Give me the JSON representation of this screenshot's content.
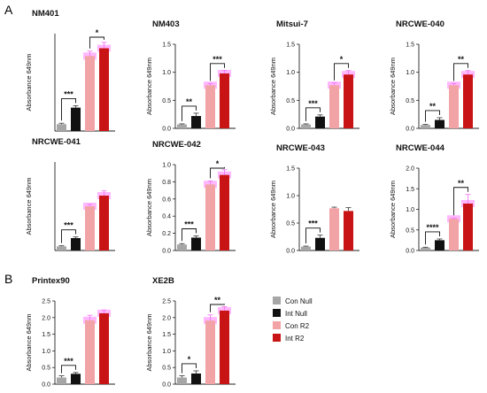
{
  "figure": {
    "panel_labels": [
      "A",
      "B"
    ],
    "legend": {
      "entries": [
        {
          "name": "Con Null",
          "color": "#a6a6a6"
        },
        {
          "name": "Int Null",
          "color": "#111111"
        },
        {
          "name": "Con R2",
          "color": "#f2a3a6"
        },
        {
          "name": "Int R2",
          "color": "#c81414"
        }
      ]
    },
    "colors": {
      "con_null": "#a6a6a6",
      "int_null": "#111111",
      "con_r2": "#f2a3a6",
      "int_r2": "#c81414",
      "highlight": "#ff33ff",
      "error_bar_light": "#f06cf0"
    }
  },
  "chart_data": [
    {
      "type": "bar",
      "title": "NM401",
      "ylabel": "Absorbance 649nm",
      "categories": [
        "Con Null",
        "Int Null",
        "Con R2",
        "Int R2"
      ],
      "values": [
        0.07,
        0.24,
        0.77,
        0.85
      ],
      "errors": [
        0.01,
        0.02,
        0.05,
        0.06
      ],
      "ylim": [
        0,
        1.0
      ],
      "yticks": [],
      "highlighted": true,
      "significance": [
        {
          "pair": [
            0,
            1
          ],
          "label": "***"
        },
        {
          "pair": [
            2,
            3
          ],
          "label": "*"
        }
      ]
    },
    {
      "type": "bar",
      "title": "NM403",
      "ylabel": "Absorbance 649nm",
      "categories": [
        "Con Null",
        "Int Null",
        "Con R2",
        "Int R2"
      ],
      "values": [
        0.07,
        0.22,
        0.77,
        0.98
      ],
      "errors": [
        0.01,
        0.05,
        0.03,
        0.05
      ],
      "ylim": [
        0,
        1.5
      ],
      "yticks": [
        "0.0",
        "0.5",
        "1.0",
        "1.5"
      ],
      "highlighted": true,
      "significance": [
        {
          "pair": [
            0,
            1
          ],
          "label": "**"
        },
        {
          "pair": [
            2,
            3
          ],
          "label": "***"
        }
      ]
    },
    {
      "type": "bar",
      "title": "Mitsui-7",
      "ylabel": "Absorbance 649nm",
      "categories": [
        "Con Null",
        "Int Null",
        "Con R2",
        "Int R2"
      ],
      "values": [
        0.07,
        0.21,
        0.77,
        0.96
      ],
      "errors": [
        0.01,
        0.03,
        0.04,
        0.07
      ],
      "ylim": [
        0,
        1.5
      ],
      "yticks": [
        "0.0",
        "0.5",
        "1.0",
        "1.5"
      ],
      "highlighted": true,
      "significance": [
        {
          "pair": [
            0,
            1
          ],
          "label": "***"
        },
        {
          "pair": [
            2,
            3
          ],
          "label": "*"
        }
      ]
    },
    {
      "type": "bar",
      "title": "NRCWE-040",
      "ylabel": "Absorbance 649nm",
      "categories": [
        "Con Null",
        "Int Null",
        "Con R2",
        "Int R2"
      ],
      "values": [
        0.06,
        0.15,
        0.77,
        0.96
      ],
      "errors": [
        0.01,
        0.04,
        0.03,
        0.07
      ],
      "ylim": [
        0,
        1.5
      ],
      "yticks": [
        "0.0",
        "0.5",
        "1.0",
        "1.5"
      ],
      "highlighted": true,
      "significance": [
        {
          "pair": [
            0,
            1
          ],
          "label": "**"
        },
        {
          "pair": [
            2,
            3
          ],
          "label": "**"
        }
      ]
    },
    {
      "type": "bar",
      "title": "NRCWE-041",
      "ylabel": "Absorbance 649nm",
      "categories": [
        "Con Null",
        "Int Null",
        "Con R2",
        "Int R2"
      ],
      "values": [
        0.07,
        0.21,
        0.75,
        0.93
      ],
      "errors": [
        0.01,
        0.02,
        0.03,
        0.08
      ],
      "ylim": [
        0,
        1.5
      ],
      "yticks": [],
      "highlighted": true,
      "significance": [
        {
          "pair": [
            0,
            1
          ],
          "label": "***"
        }
      ]
    },
    {
      "type": "bar",
      "title": "NRCWE-042",
      "ylabel": "Absorbance 649nm",
      "categories": [
        "Con Null",
        "Int Null",
        "Con R2",
        "Int R2"
      ],
      "values": [
        0.07,
        0.15,
        0.77,
        0.88
      ],
      "errors": [
        0.01,
        0.02,
        0.04,
        0.06
      ],
      "ylim": [
        0,
        1.0
      ],
      "yticks": [
        "0.0",
        "0.2",
        "0.4",
        "0.6",
        "0.8",
        "1.0"
      ],
      "highlighted": true,
      "significance": [
        {
          "pair": [
            0,
            1
          ],
          "label": "***"
        },
        {
          "pair": [
            2,
            3
          ],
          "label": "*"
        }
      ]
    },
    {
      "type": "bar",
      "title": "NRCWE-043",
      "ylabel": "Absorbance 649nm",
      "categories": [
        "Con Null",
        "Int Null",
        "Con R2",
        "Int R2"
      ],
      "values": [
        0.07,
        0.23,
        0.77,
        0.72
      ],
      "errors": [
        0.01,
        0.05,
        0.02,
        0.06
      ],
      "ylim": [
        0,
        1.5
      ],
      "yticks": [
        "0.0",
        "0.5",
        "1.0",
        "1.5"
      ],
      "highlighted": false,
      "significance": [
        {
          "pair": [
            0,
            1
          ],
          "label": "***"
        }
      ]
    },
    {
      "type": "bar",
      "title": "NRCWE-044",
      "ylabel": "Absorbance 649nm",
      "categories": [
        "Con Null",
        "Int Null",
        "Con R2",
        "Int R2"
      ],
      "values": [
        0.07,
        0.25,
        0.77,
        1.14
      ],
      "errors": [
        0.01,
        0.03,
        0.02,
        0.22
      ],
      "ylim": [
        0,
        2.0
      ],
      "yticks": [
        "0.0",
        "0.5",
        "1.0",
        "1.5",
        "2.0"
      ],
      "highlighted": true,
      "significance": [
        {
          "pair": [
            0,
            1
          ],
          "label": "****"
        },
        {
          "pair": [
            2,
            3
          ],
          "label": "**"
        }
      ]
    },
    {
      "type": "bar",
      "title": "Printex90",
      "ylabel": "Absorbance 649nm",
      "categories": [
        "Con Null",
        "Int Null",
        "Con R2",
        "Int R2"
      ],
      "values": [
        0.2,
        0.31,
        1.92,
        2.13
      ],
      "errors": [
        0.05,
        0.04,
        0.15,
        0.1
      ],
      "ylim": [
        0,
        2.5
      ],
      "yticks": [
        "0.0",
        "0.5",
        "1.0",
        "1.5",
        "2.0",
        "2.5"
      ],
      "highlighted": true,
      "significance": [
        {
          "pair": [
            0,
            1
          ],
          "label": "***"
        }
      ]
    },
    {
      "type": "bar",
      "title": "XE2B",
      "ylabel": "Absorbance 649nm",
      "categories": [
        "Con Null",
        "Int Null",
        "Con R2",
        "Int R2"
      ],
      "values": [
        0.2,
        0.32,
        1.91,
        2.21
      ],
      "errors": [
        0.05,
        0.08,
        0.17,
        0.12
      ],
      "ylim": [
        0,
        2.5
      ],
      "yticks": [
        "0.0",
        "0.5",
        "1.0",
        "1.5",
        "2.0",
        "2.5"
      ],
      "highlighted": true,
      "significance": [
        {
          "pair": [
            0,
            1
          ],
          "label": "*"
        },
        {
          "pair": [
            2,
            3
          ],
          "label": "**"
        }
      ]
    }
  ]
}
